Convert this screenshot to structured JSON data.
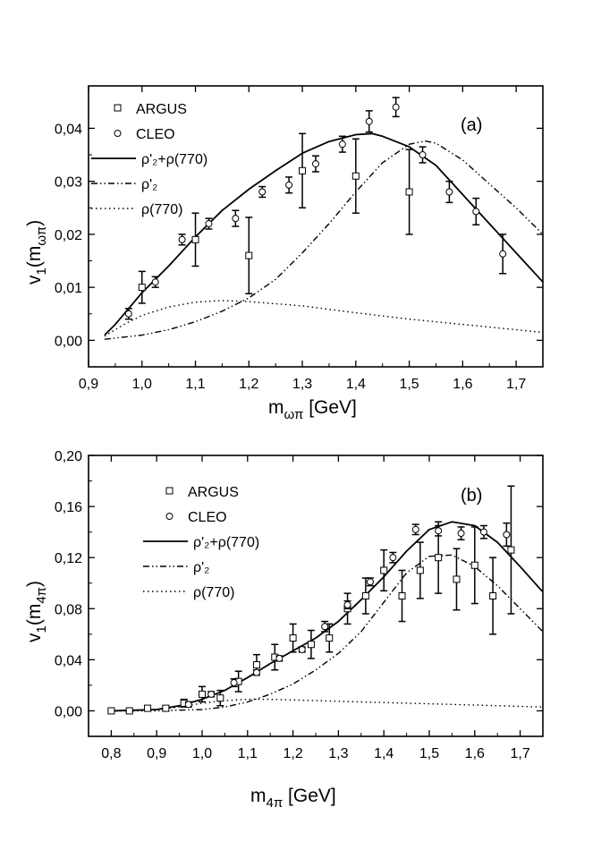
{
  "chart_data": [
    {
      "type": "scatter",
      "panel_label": "(a)",
      "xlabel": {
        "main": "m",
        "sub": "ωπ",
        "unit": " [GeV]"
      },
      "ylabel": {
        "main": "v",
        "sub": "1",
        "arg": "m",
        "argsub": "ωπ"
      },
      "xlim": [
        0.9,
        1.75
      ],
      "ylim": [
        -0.005,
        0.048
      ],
      "xticks": [
        0.9,
        1.0,
        1.1,
        1.2,
        1.3,
        1.4,
        1.5,
        1.6,
        1.7
      ],
      "xtick_labels": [
        "0,9",
        "1,0",
        "1,1",
        "1,2",
        "1,3",
        "1,4",
        "1,5",
        "1,6",
        "1,7"
      ],
      "yticks": [
        0.0,
        0.01,
        0.02,
        0.03,
        0.04
      ],
      "ytick_labels": [
        "0,00",
        "0,01",
        "0,02",
        "0,03",
        "0,04"
      ],
      "legend": [
        {
          "label": "ARGUS",
          "style": "square-marker"
        },
        {
          "label": "CLEO",
          "style": "circle-marker"
        },
        {
          "label": "ρ'₂+ρ(770)",
          "style": "solid"
        },
        {
          "label": "ρ'₂",
          "style": "dash-dot-dot"
        },
        {
          "label": "ρ(770)",
          "style": "dotted"
        }
      ],
      "series": [
        {
          "name": "ARGUS",
          "marker": "square",
          "x": [
            1.0,
            1.1,
            1.2,
            1.3,
            1.4,
            1.5
          ],
          "y": [
            0.01,
            0.019,
            0.016,
            0.032,
            0.031,
            0.028
          ],
          "err": [
            0.003,
            0.005,
            0.0072,
            0.007,
            0.007,
            0.008
          ]
        },
        {
          "name": "CLEO",
          "marker": "circle",
          "x": [
            0.975,
            1.025,
            1.075,
            1.125,
            1.175,
            1.225,
            1.275,
            1.325,
            1.375,
            1.425,
            1.475,
            1.525,
            1.575,
            1.625,
            1.675
          ],
          "y": [
            0.005,
            0.011,
            0.019,
            0.022,
            0.023,
            0.028,
            0.0293,
            0.0333,
            0.037,
            0.0413,
            0.044,
            0.035,
            0.028,
            0.0243,
            0.0163
          ],
          "err": [
            0.001,
            0.001,
            0.001,
            0.001,
            0.0015,
            0.001,
            0.0015,
            0.0015,
            0.0015,
            0.002,
            0.0018,
            0.0015,
            0.002,
            0.0025,
            0.0037
          ]
        },
        {
          "name": "ρ'₂+ρ(770)",
          "line": "solid",
          "x": [
            0.93,
            0.95,
            1.0,
            1.05,
            1.1,
            1.15,
            1.2,
            1.25,
            1.3,
            1.35,
            1.4,
            1.43,
            1.45,
            1.5,
            1.55,
            1.6,
            1.65,
            1.7,
            1.75
          ],
          "y": [
            0.001,
            0.003,
            0.009,
            0.014,
            0.0195,
            0.0245,
            0.0285,
            0.032,
            0.0353,
            0.0375,
            0.0388,
            0.039,
            0.0385,
            0.0365,
            0.033,
            0.0275,
            0.022,
            0.0165,
            0.011
          ]
        },
        {
          "name": "ρ'₂",
          "line": "dash-dot-dot",
          "x": [
            0.93,
            1.0,
            1.05,
            1.1,
            1.15,
            1.2,
            1.25,
            1.3,
            1.35,
            1.4,
            1.45,
            1.5,
            1.53,
            1.55,
            1.6,
            1.65,
            1.7,
            1.75
          ],
          "y": [
            0.0002,
            0.001,
            0.002,
            0.0035,
            0.0055,
            0.008,
            0.0115,
            0.0165,
            0.022,
            0.028,
            0.0335,
            0.037,
            0.0376,
            0.0372,
            0.034,
            0.0295,
            0.025,
            0.02
          ]
        },
        {
          "name": "ρ(770)",
          "line": "dotted",
          "x": [
            0.93,
            0.97,
            1.0,
            1.05,
            1.1,
            1.15,
            1.2,
            1.3,
            1.4,
            1.5,
            1.6,
            1.7,
            1.75
          ],
          "y": [
            0.0008,
            0.0032,
            0.0047,
            0.0063,
            0.0072,
            0.0075,
            0.0073,
            0.0065,
            0.0052,
            0.004,
            0.003,
            0.002,
            0.0015
          ]
        }
      ]
    },
    {
      "type": "scatter",
      "panel_label": "(b)",
      "xlabel": {
        "main": "m",
        "sub": "4π",
        "unit": " [GeV]"
      },
      "ylabel": {
        "main": "v",
        "sub": "1",
        "arg": "m",
        "argsub": "4π"
      },
      "xlim": [
        0.75,
        1.75
      ],
      "ylim": [
        -0.02,
        0.2
      ],
      "xticks": [
        0.8,
        0.9,
        1.0,
        1.1,
        1.2,
        1.3,
        1.4,
        1.5,
        1.6,
        1.7
      ],
      "xtick_labels": [
        "0,8",
        "0,9",
        "1,0",
        "1,1",
        "1,2",
        "1,3",
        "1,4",
        "1,5",
        "1,6",
        "1,7"
      ],
      "yticks": [
        0.0,
        0.04,
        0.08,
        0.12,
        0.16,
        0.2
      ],
      "ytick_labels": [
        "0,00",
        "0,04",
        "0,08",
        "0,12",
        "0,16",
        "0,20"
      ],
      "legend": [
        {
          "label": "ARGUS",
          "style": "square-marker"
        },
        {
          "label": "CLEO",
          "style": "circle-marker"
        },
        {
          "label": "ρ'₂+ρ(770)",
          "style": "solid"
        },
        {
          "label": "ρ'₂",
          "style": "dash-dot-dot"
        },
        {
          "label": "ρ(770)",
          "style": "dotted"
        }
      ],
      "series": [
        {
          "name": "ARGUS",
          "marker": "square",
          "x": [
            0.8,
            0.84,
            0.88,
            0.92,
            0.96,
            1.0,
            1.04,
            1.08,
            1.12,
            1.16,
            1.2,
            1.24,
            1.28,
            1.32,
            1.36,
            1.4,
            1.44,
            1.48,
            1.52,
            1.56,
            1.6,
            1.64,
            1.68
          ],
          "y": [
            0.0,
            0.0,
            0.002,
            0.002,
            0.006,
            0.013,
            0.01,
            0.023,
            0.036,
            0.042,
            0.057,
            0.052,
            0.057,
            0.08,
            0.09,
            0.11,
            0.09,
            0.11,
            0.12,
            0.103,
            0.114,
            0.09,
            0.126
          ],
          "err": [
            0.001,
            0.001,
            0.002,
            0.002,
            0.003,
            0.006,
            0.006,
            0.008,
            0.008,
            0.01,
            0.011,
            0.011,
            0.011,
            0.012,
            0.014,
            0.016,
            0.02,
            0.022,
            0.028,
            0.024,
            0.03,
            0.03,
            0.05
          ]
        },
        {
          "name": "CLEO",
          "marker": "circle",
          "x": [
            0.97,
            1.02,
            1.07,
            1.12,
            1.17,
            1.22,
            1.27,
            1.32,
            1.37,
            1.42,
            1.47,
            1.52,
            1.57,
            1.62,
            1.67
          ],
          "y": [
            0.005,
            0.013,
            0.022,
            0.03,
            0.041,
            0.048,
            0.066,
            0.083,
            0.101,
            0.12,
            0.142,
            0.141,
            0.139,
            0.14,
            0.138
          ],
          "err": [
            0.002,
            0.002,
            0.003,
            0.002,
            0.002,
            0.002,
            0.004,
            0.003,
            0.003,
            0.004,
            0.004,
            0.004,
            0.005,
            0.005,
            0.009
          ]
        },
        {
          "name": "ρ'₂+ρ(770)",
          "line": "solid",
          "x": [
            0.8,
            0.9,
            0.95,
            1.0,
            1.05,
            1.1,
            1.15,
            1.2,
            1.25,
            1.3,
            1.35,
            1.4,
            1.45,
            1.5,
            1.55,
            1.6,
            1.65,
            1.7,
            1.75
          ],
          "y": [
            0.0,
            0.001,
            0.004,
            0.009,
            0.016,
            0.026,
            0.037,
            0.047,
            0.057,
            0.07,
            0.087,
            0.105,
            0.125,
            0.142,
            0.148,
            0.145,
            0.132,
            0.113,
            0.093
          ]
        },
        {
          "name": "ρ'₂",
          "line": "dash-dot-dot",
          "x": [
            0.8,
            0.9,
            0.95,
            1.0,
            1.05,
            1.1,
            1.15,
            1.2,
            1.25,
            1.3,
            1.35,
            1.4,
            1.45,
            1.5,
            1.55,
            1.6,
            1.65,
            1.7,
            1.75
          ],
          "y": [
            0.0,
            0.0,
            0.0005,
            0.001,
            0.003,
            0.007,
            0.013,
            0.021,
            0.032,
            0.045,
            0.062,
            0.085,
            0.108,
            0.121,
            0.122,
            0.113,
            0.098,
            0.08,
            0.062
          ]
        },
        {
          "name": "ρ(770)",
          "line": "dotted",
          "x": [
            0.8,
            0.9,
            0.95,
            1.0,
            1.05,
            1.1,
            1.15,
            1.2,
            1.3,
            1.4,
            1.5,
            1.6,
            1.7,
            1.75
          ],
          "y": [
            0.0,
            0.001,
            0.003,
            0.006,
            0.008,
            0.009,
            0.009,
            0.0085,
            0.0075,
            0.0065,
            0.0055,
            0.0045,
            0.0035,
            0.003
          ]
        }
      ]
    }
  ]
}
